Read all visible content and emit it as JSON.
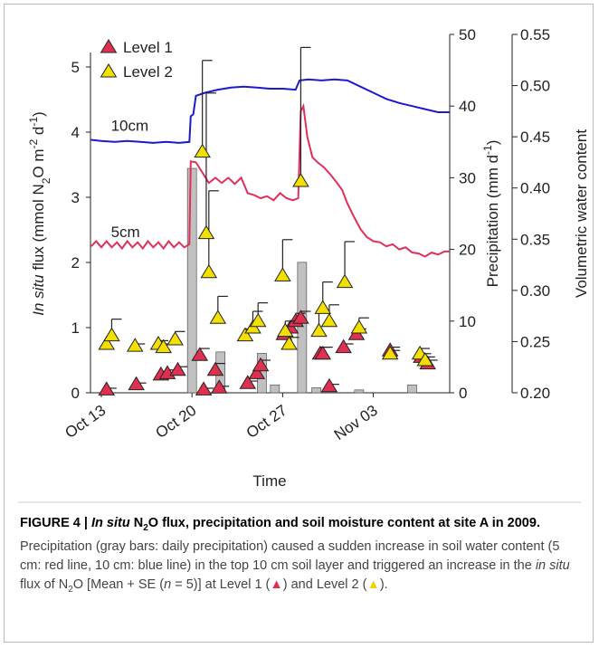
{
  "chart_data": {
    "type": "scatter",
    "legend_position": "upper left",
    "xlabel": "Time",
    "ylabel_parts": [
      "In situ",
      " flux (mmol N",
      "2",
      "O m",
      "-2",
      " d",
      "-1",
      ")"
    ],
    "y2label_parts": [
      "Precipitation (mm d",
      "-1",
      ")"
    ],
    "y3label": "Volumetric water content",
    "xlim": [
      12.16,
      39.9
    ],
    "xticks": [
      {
        "value": 13,
        "label": "Oct 13"
      },
      {
        "value": 20,
        "label": "Oct 20"
      },
      {
        "value": 27,
        "label": "Oct 27"
      },
      {
        "value": 34,
        "label": "Nov 03"
      }
    ],
    "ylim": [
      0,
      5.5
    ],
    "yticks": [
      0,
      1,
      2,
      3,
      4,
      5
    ],
    "y2lim": [
      0,
      50
    ],
    "y2ticks": [
      0,
      10,
      20,
      30,
      40,
      50
    ],
    "y3lim": [
      0.2,
      0.55
    ],
    "y3ticks": [
      {
        "value": 0.2,
        "label": "0.20"
      },
      0.25,
      {
        "value": 0.3,
        "label": "0.30"
      },
      0.35,
      {
        "value": 0.4,
        "label": "0.40"
      },
      0.45,
      {
        "value": 0.5,
        "label": "0.50"
      },
      0.55
    ],
    "series": [
      {
        "name": "Level 1",
        "type": "scatter",
        "color": "#e0304f",
        "x": [
          13.4,
          15.7,
          17.6,
          18.1,
          18.9,
          20.6,
          20.9,
          21.8,
          22.1,
          24.3,
          25,
          25.3,
          27.1,
          27.6,
          28,
          28.4,
          29.9,
          30.1,
          30.6,
          31.7,
          32.7,
          35.3,
          37.7,
          38.2
        ],
        "values": [
          0.05,
          0.13,
          0.28,
          0.3,
          0.35,
          0.58,
          0.05,
          0.35,
          0.08,
          0.15,
          0.3,
          0.42,
          0.9,
          1,
          1.1,
          1.15,
          0.6,
          0.6,
          0.1,
          0.7,
          0.9,
          0.65,
          0.55,
          0.45
        ],
        "errors": [
          0.02,
          0.02,
          0.03,
          0.05,
          0.05,
          0.1,
          0.02,
          0.1,
          0.02,
          0.03,
          0.05,
          0.08,
          0.1,
          0.1,
          0.12,
          0.1,
          0.1,
          0.1,
          0.03,
          0.05,
          0.08,
          0.05,
          0.05,
          0.05
        ]
      },
      {
        "name": "Level 2",
        "type": "scatter",
        "color": "#f4e000",
        "x": [
          13.4,
          13.8,
          15.6,
          17.4,
          17.8,
          18.7,
          20.8,
          21.1,
          21.3,
          22,
          24.1,
          24.7,
          25.1,
          27,
          27.2,
          27.5,
          28.4,
          29.8,
          30.1,
          30.6,
          31.8,
          32.9,
          35.3,
          37.6,
          38
        ],
        "values": [
          0.75,
          0.88,
          0.72,
          0.75,
          0.7,
          0.82,
          3.7,
          2.45,
          1.85,
          1.15,
          0.88,
          1,
          1.1,
          1.8,
          0.95,
          0.75,
          3.25,
          0.95,
          1.3,
          1.1,
          1.7,
          1,
          0.6,
          0.6,
          0.5
        ],
        "errors": [
          0.05,
          0.25,
          0.03,
          0.05,
          0.05,
          0.12,
          1.4,
          2.15,
          1.25,
          0.33,
          0.1,
          0.25,
          0.28,
          0.55,
          0.15,
          0.1,
          2.05,
          0.3,
          0.4,
          0.25,
          0.62,
          0.15,
          0.05,
          0.08,
          0.05
        ]
      },
      {
        "type": "bar",
        "axis": "y2",
        "color": "#c0c0c0",
        "x": [
          20,
          22.2,
          25.4,
          26.4,
          28.5,
          29.6,
          32.9,
          37
        ],
        "values": [
          31.3,
          5.7,
          5.5,
          1.1,
          18.2,
          0.7,
          0.4,
          1.1
        ]
      },
      {
        "type": "line",
        "axis": "y3",
        "color": "#1a1ad0",
        "label": "10cm",
        "x": [
          12.2,
          13,
          14,
          15,
          16,
          17,
          18,
          19,
          19.8,
          19.9,
          20.1,
          20.3,
          21,
          22,
          23,
          24,
          25,
          26,
          27,
          28,
          28.3,
          29,
          30,
          31,
          32,
          33,
          34,
          35,
          36,
          37,
          38,
          39,
          39.9
        ],
        "values": [
          0.447,
          0.446,
          0.445,
          0.446,
          0.445,
          0.444,
          0.445,
          0.444,
          0.445,
          0.47,
          0.472,
          0.49,
          0.493,
          0.496,
          0.498,
          0.499,
          0.498,
          0.497,
          0.497,
          0.496,
          0.505,
          0.506,
          0.505,
          0.506,
          0.505,
          0.499,
          0.493,
          0.487,
          0.483,
          0.48,
          0.477,
          0.474,
          0.474
        ]
      },
      {
        "type": "line",
        "axis": "y3",
        "color": "#e0305a",
        "label": "5cm",
        "x": [
          12.2,
          12.6,
          13,
          13.4,
          13.8,
          14.2,
          14.6,
          15,
          15.4,
          15.8,
          16.2,
          16.6,
          17,
          17.4,
          17.8,
          18.2,
          18.6,
          19,
          19.4,
          19.8,
          19.9,
          20.3,
          20.8,
          21.3,
          21.8,
          22.3,
          22.8,
          23.3,
          23.8,
          24.3,
          24.8,
          25.3,
          25.8,
          26.3,
          26.8,
          27.3,
          27.8,
          28.2,
          28.4,
          28.6,
          28.9,
          29.3,
          29.7,
          30.2,
          30.7,
          31.2,
          31.6,
          32,
          32.5,
          33,
          33.5,
          34,
          34.5,
          35,
          35.5,
          36,
          36.5,
          37,
          37.5,
          38,
          38.5,
          39,
          39.5,
          39.9
        ],
        "values": [
          0.343,
          0.348,
          0.342,
          0.348,
          0.342,
          0.347,
          0.341,
          0.348,
          0.342,
          0.347,
          0.341,
          0.348,
          0.342,
          0.347,
          0.341,
          0.348,
          0.342,
          0.347,
          0.342,
          0.345,
          0.426,
          0.425,
          0.415,
          0.405,
          0.41,
          0.405,
          0.41,
          0.404,
          0.41,
          0.395,
          0.393,
          0.39,
          0.392,
          0.388,
          0.395,
          0.39,
          0.388,
          0.39,
          0.475,
          0.48,
          0.45,
          0.43,
          0.425,
          0.42,
          0.413,
          0.405,
          0.398,
          0.385,
          0.372,
          0.36,
          0.352,
          0.348,
          0.347,
          0.343,
          0.345,
          0.34,
          0.342,
          0.337,
          0.336,
          0.333,
          0.337,
          0.335,
          0.338,
          0.338
        ]
      }
    ]
  },
  "caption": {
    "title": [
      "FIGURE 4 | ",
      "In situ",
      " N",
      "2",
      "O flux, precipitation and soil moisture content at site A in 2009."
    ],
    "body": [
      " Precipitation (gray bars: daily precipitation) caused a sudden increase in soil water content (5 cm: red line, 10 cm: blue line) in the top 10 cm soil layer and triggered an increase in the ",
      "in situ",
      " flux of N",
      "2",
      "O [Mean + SE (",
      "n",
      " = 5)] at Level 1 (",
      "▲",
      ") and Level 2 (",
      "▲",
      ")."
    ]
  }
}
